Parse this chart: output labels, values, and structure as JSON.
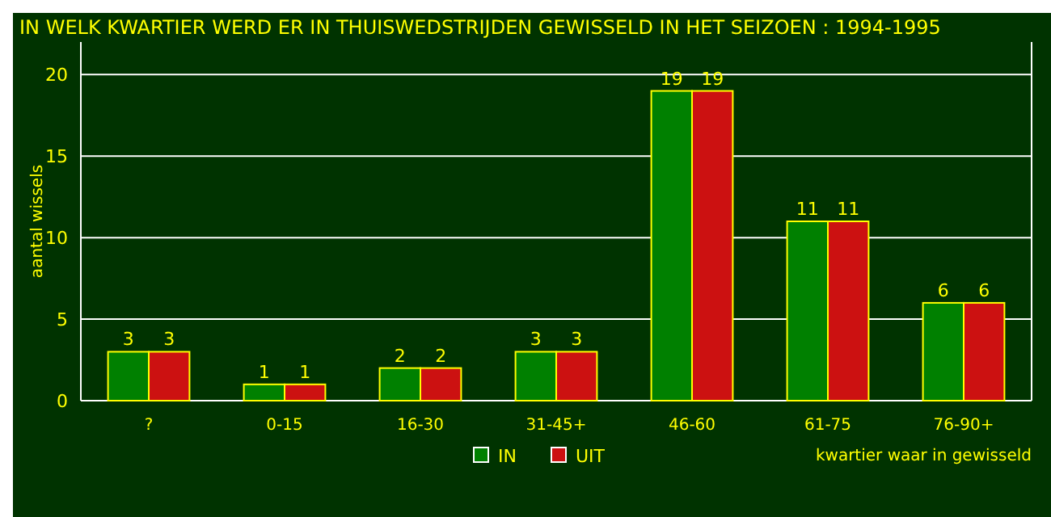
{
  "chart_data": {
    "type": "bar",
    "title": "IN WELK KWARTIER WERD ER IN THUISWEDSTRIJDEN GEWISSELD IN HET SEIZOEN : 1994-1995",
    "xlabel": "kwartier waar in gewisseld",
    "ylabel": "aantal wissels",
    "categories": [
      "?",
      "0-15",
      "16-30",
      "31-45+",
      "46-60",
      "61-75",
      "76-90+"
    ],
    "series": [
      {
        "name": "IN",
        "color": "#008000",
        "values": [
          3,
          1,
          2,
          3,
          19,
          11,
          6
        ]
      },
      {
        "name": "UIT",
        "color": "#cc1111",
        "values": [
          3,
          1,
          2,
          3,
          19,
          11,
          6
        ]
      }
    ],
    "ylim": [
      0,
      22
    ],
    "yticks": [
      0,
      5,
      10,
      15,
      20
    ],
    "grid": "y",
    "legend": "bottom",
    "data_labels": true
  }
}
